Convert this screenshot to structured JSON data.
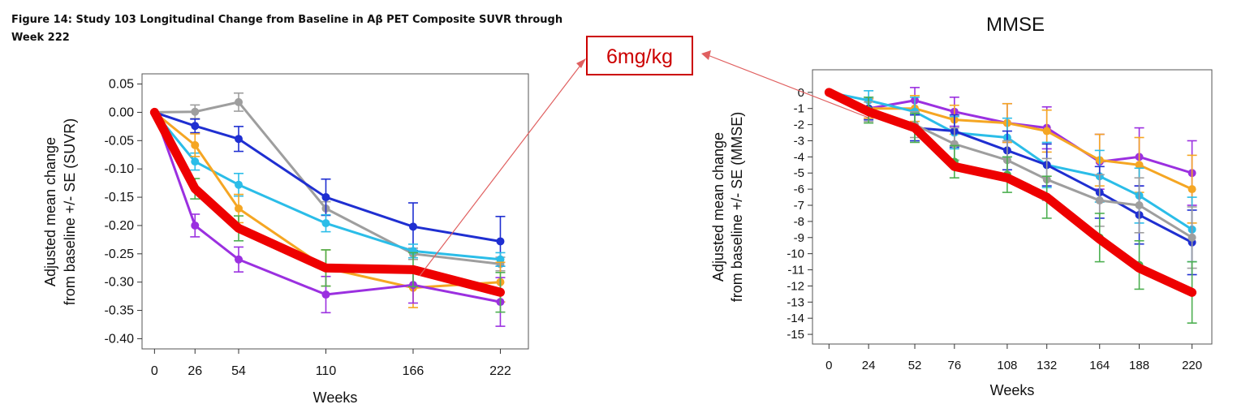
{
  "figure_title_line1": "Figure 14: Study 103 Longitudinal Change from Baseline in Aβ PET Composite SUVR through",
  "figure_title_line2": "Week 222",
  "callout_label": "6mg/kg",
  "colors": {
    "gray": "#9e9e9e",
    "blue": "#1f2fd1",
    "cyan": "#2bbde8",
    "orange": "#f5a623",
    "purple": "#9b30e0",
    "red": "#ee0000",
    "green": "#4caf50",
    "callout": "#cc0000",
    "arrow": "#e06060"
  },
  "chart_data": [
    {
      "type": "line",
      "title": "",
      "xlabel": "Weeks",
      "ylabel_line1": "Adjusted mean change",
      "ylabel_line2": "from baseline +/- SE (SUVR)",
      "x": [
        0,
        26,
        54,
        110,
        166,
        222
      ],
      "xticks": [
        "0",
        "26",
        "54",
        "110",
        "166",
        "222"
      ],
      "yticks": [
        0.05,
        0.0,
        -0.05,
        -0.1,
        -0.15,
        -0.2,
        -0.25,
        -0.3,
        -0.35,
        -0.4
      ],
      "ytick_labels": [
        "0.05",
        "0.00",
        "-0.05",
        "-0.10",
        "-0.15",
        "-0.20",
        "-0.25",
        "-0.30",
        "-0.35",
        "-0.40"
      ],
      "xlim": [
        -8,
        240
      ],
      "ylim": [
        -0.418,
        0.068
      ],
      "series": [
        {
          "name": "gray",
          "color_key": "gray",
          "values": [
            0,
            0.001,
            0.018,
            -0.17,
            -0.25,
            -0.268
          ],
          "errors": [
            0.002,
            0.012,
            0.016,
            0.012,
            0.01,
            0.012
          ]
        },
        {
          "name": "blue",
          "color_key": "blue",
          "values": [
            0,
            -0.024,
            -0.047,
            -0.15,
            -0.202,
            -0.228
          ],
          "errors": [
            0.002,
            0.012,
            0.022,
            0.032,
            0.042,
            0.044
          ]
        },
        {
          "name": "cyan",
          "color_key": "cyan",
          "values": [
            0,
            -0.087,
            -0.128,
            -0.196,
            -0.245,
            -0.26
          ],
          "errors": [
            0.002,
            0.015,
            0.02,
            0.015,
            0.012,
            0.012
          ]
        },
        {
          "name": "orange",
          "color_key": "orange",
          "values": [
            0,
            -0.058,
            -0.17,
            -0.275,
            -0.31,
            -0.3
          ],
          "errors": [
            0.002,
            0.02,
            0.025,
            0.032,
            0.035,
            0.035
          ]
        },
        {
          "name": "purple",
          "color_key": "purple",
          "values": [
            0,
            -0.2,
            -0.26,
            -0.322,
            -0.305,
            -0.335
          ],
          "errors": [
            0.002,
            0.02,
            0.022,
            0.032,
            0.032,
            0.043
          ]
        },
        {
          "name": "green",
          "color_key": "green",
          "values": [
            0,
            -0.135,
            -0.205,
            -0.275,
            -0.278,
            -0.318
          ],
          "errors": [
            0.002,
            0.018,
            0.022,
            0.032,
            0.03,
            0.035
          ],
          "draw_line": false
        },
        {
          "name": "6mg/kg",
          "color_key": "red",
          "values": [
            0,
            -0.135,
            -0.205,
            -0.275,
            -0.278,
            -0.318
          ],
          "errors": [],
          "thick": true
        }
      ]
    },
    {
      "type": "line",
      "title": "MMSE",
      "xlabel": "Weeks",
      "ylabel_line1": "Adjusted mean change",
      "ylabel_line2": "from baseline +/- SE (MMSE)",
      "x": [
        0,
        24,
        52,
        76,
        108,
        132,
        164,
        188,
        220
      ],
      "xticks": [
        "0",
        "24",
        "52",
        "76",
        "108",
        "132",
        "164",
        "188",
        "220"
      ],
      "yticks": [
        0,
        -1,
        -2,
        -3,
        -4,
        -5,
        -6,
        -7,
        -8,
        -9,
        -10,
        -11,
        -12,
        -13,
        -14,
        -15
      ],
      "ytick_labels": [
        "0",
        "-1",
        "-2",
        "-3",
        "-4",
        "-5",
        "-6",
        "-7",
        "-8",
        "-9",
        "-10",
        "-11",
        "-12",
        "-13",
        "-14",
        "-15"
      ],
      "xlim": [
        -10,
        232
      ],
      "ylim": [
        -15.6,
        1.4
      ],
      "series": [
        {
          "name": "purple",
          "color_key": "purple",
          "values": [
            0,
            -1.0,
            -0.5,
            -1.2,
            -1.9,
            -2.2,
            -4.3,
            -4.0,
            -5.0
          ],
          "errors": [
            0.1,
            0.6,
            0.8,
            0.9,
            1.2,
            1.3,
            1.7,
            1.8,
            2.0
          ]
        },
        {
          "name": "orange",
          "color_key": "orange",
          "values": [
            0,
            -1.0,
            -1.0,
            -1.7,
            -1.9,
            -2.4,
            -4.2,
            -4.5,
            -6.0
          ],
          "errors": [
            0.1,
            0.6,
            0.8,
            0.9,
            1.2,
            1.3,
            1.6,
            1.7,
            2.1
          ]
        },
        {
          "name": "cyan",
          "color_key": "cyan",
          "values": [
            0,
            -0.5,
            -1.2,
            -2.5,
            -2.8,
            -4.5,
            -5.2,
            -6.4,
            -8.5
          ],
          "errors": [
            0.1,
            0.6,
            0.9,
            1.0,
            1.2,
            1.4,
            1.6,
            1.7,
            2.0
          ]
        },
        {
          "name": "blue",
          "color_key": "blue",
          "values": [
            0,
            -1.0,
            -2.2,
            -2.4,
            -3.6,
            -4.5,
            -6.2,
            -7.6,
            -9.3
          ],
          "errors": [
            0.1,
            0.7,
            0.8,
            1.0,
            1.2,
            1.3,
            1.6,
            1.8,
            2.0
          ]
        },
        {
          "name": "gray",
          "color_key": "gray",
          "values": [
            0,
            -1.2,
            -2.0,
            -3.2,
            -4.2,
            -5.4,
            -6.7,
            -7.0,
            -9.0
          ],
          "errors": [
            0.1,
            0.6,
            0.8,
            1.0,
            1.2,
            1.3,
            1.6,
            1.7,
            1.9
          ]
        },
        {
          "name": "green",
          "color_key": "green",
          "values": [
            0,
            -1.1,
            -2.2,
            -4.3,
            -5.1,
            -6.5,
            -9.0,
            -10.7,
            -12.4
          ],
          "errors": [
            0.1,
            0.8,
            0.9,
            1.0,
            1.1,
            1.3,
            1.5,
            1.5,
            1.9
          ],
          "draw_line": false
        },
        {
          "name": "6mg/kg",
          "color_key": "red",
          "values": [
            0,
            -1.2,
            -2.2,
            -4.6,
            -5.3,
            -6.5,
            -9.1,
            -10.9,
            -12.4
          ],
          "errors": [],
          "thick": true
        }
      ]
    }
  ]
}
